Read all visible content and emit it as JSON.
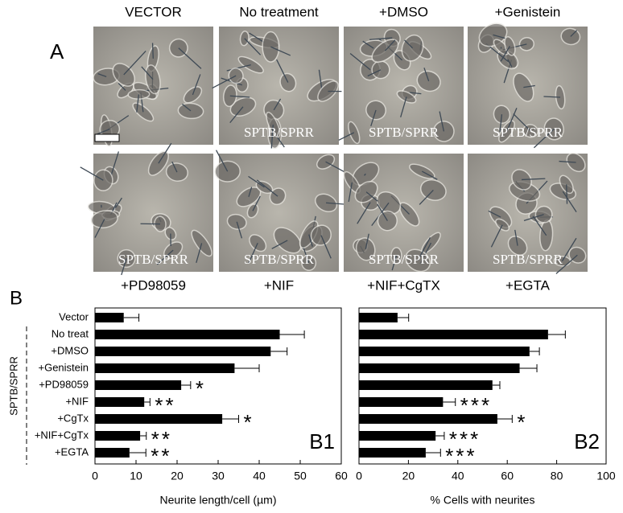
{
  "panel_a": {
    "label": "A",
    "images": [
      {
        "label": "VECTOR"
      },
      {
        "label": "No treatment",
        "overlay": "SPTB/SPRR"
      },
      {
        "label": "+DMSO",
        "overlay": "SPTB/SPRR"
      },
      {
        "label": "+Genistein",
        "overlay": "SPTB/SPRR"
      },
      {
        "label": "+PD98059",
        "overlay": "SPTB/SPRR"
      },
      {
        "label": "+NIF",
        "overlay": "SPTB/SPRR"
      },
      {
        "label": "+NIF+CgTX",
        "overlay": "SPTB/SPRR"
      },
      {
        "label": "+EGTA",
        "overlay": "SPTB/SPRR"
      }
    ]
  },
  "panel_b": {
    "label": "B",
    "group_label": "SPTB/SPRR"
  },
  "chart_data": [
    {
      "type": "bar",
      "panel_label": "B1",
      "xlabel": "Neurite length/cell (µm)",
      "categories": [
        "Vector",
        "No treat",
        "+DMSO",
        "+Genistein",
        "+PD98059",
        "+NIF",
        "+CgTx",
        "+NIF+CgTx",
        "+EGTA"
      ],
      "values": [
        7,
        45,
        42.8,
        34,
        21,
        12,
        31,
        11,
        8.4
      ],
      "errors": [
        3.7,
        6,
        4,
        6,
        2.3,
        1.4,
        4,
        1.5,
        4
      ],
      "annotations": [
        null,
        null,
        null,
        null,
        "*",
        "**",
        "*",
        "**",
        "**"
      ],
      "color": "#000000",
      "xlim": [
        0,
        60
      ],
      "xticks": [
        0,
        10,
        20,
        30,
        40,
        50,
        60
      ]
    },
    {
      "type": "bar",
      "panel_label": "B2",
      "xlabel": "% Cells with neurites",
      "values": [
        15.6,
        76.5,
        69,
        65,
        54,
        34,
        56,
        31,
        27
      ],
      "errors": [
        4.5,
        7,
        4,
        7,
        3,
        5,
        6,
        3.5,
        6
      ],
      "annotations": [
        null,
        null,
        null,
        null,
        null,
        "***",
        "*",
        "***",
        "***"
      ],
      "color": "#000000",
      "xlim": [
        0,
        100
      ],
      "xticks": [
        0,
        20,
        40,
        60,
        80,
        100
      ]
    }
  ]
}
